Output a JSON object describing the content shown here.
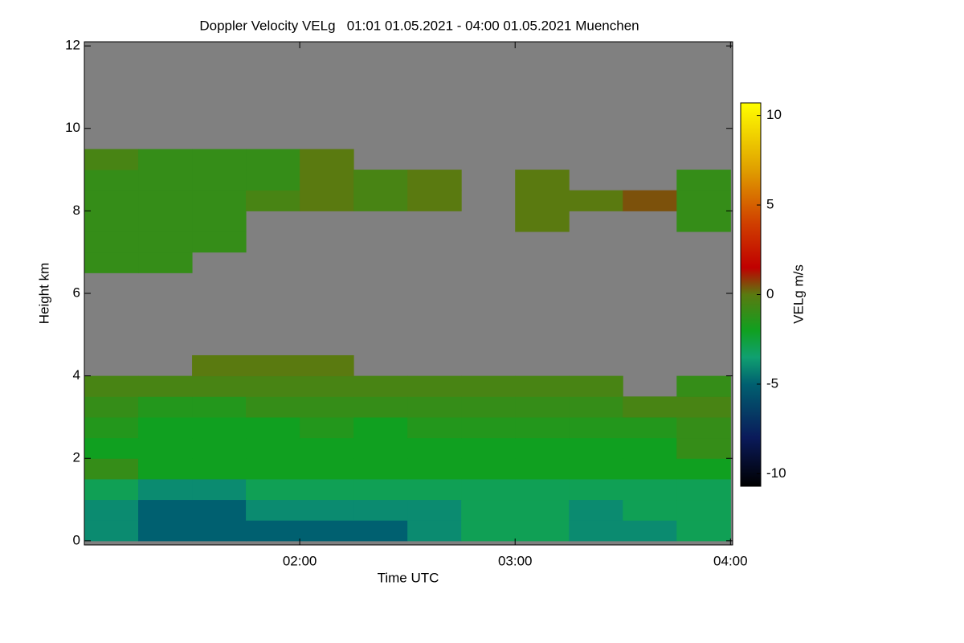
{
  "chart_data": {
    "type": "heatmap",
    "title": "Doppler Velocity VELg   01:01 01.05.2021 - 04:00 01.05.2021 Muenchen",
    "x_label": "Time UTC",
    "y_label": "Height km",
    "colorbar_label": "VELg m/s",
    "background_color": "#808080",
    "xlim": [
      1.0,
      4.01
    ],
    "xticks": [
      {
        "value": 2,
        "label": "02:00"
      },
      {
        "value": 3,
        "label": "03:00"
      },
      {
        "value": 4,
        "label": "04:00"
      }
    ],
    "ylim": [
      -0.1,
      12.1
    ],
    "yticks": [
      0,
      2,
      4,
      6,
      8,
      10,
      12
    ],
    "clim": [
      -10.7,
      10.7
    ],
    "cticks": [
      -10,
      -5,
      0,
      5,
      10
    ],
    "colorscale": [
      [
        -10.7,
        "#000000"
      ],
      [
        -8,
        "#0a1a5a"
      ],
      [
        -5,
        "#006070"
      ],
      [
        -3.5,
        "#10a070"
      ],
      [
        -2,
        "#10a020"
      ],
      [
        0,
        "#5a7a10"
      ],
      [
        1.5,
        "#c00000"
      ],
      [
        4,
        "#d04000"
      ],
      [
        7,
        "#e0a000"
      ],
      [
        10.7,
        "#ffff00"
      ]
    ],
    "x_edges": [
      1.0,
      1.25,
      1.5,
      1.75,
      2.0,
      2.25,
      2.5,
      2.75,
      3.0,
      3.25,
      3.5,
      3.75,
      4.0
    ],
    "y_edges": [
      0,
      0.5,
      1,
      1.5,
      2,
      2.5,
      3,
      3.5,
      4,
      4.5,
      5,
      5.5,
      6,
      6.5,
      7,
      7.5,
      8,
      8.5,
      9,
      9.5,
      10,
      10.5,
      11,
      11.5,
      12
    ],
    "z": [
      [
        -4,
        -5,
        -5,
        -5,
        -5,
        -5,
        -4,
        -3,
        -3,
        -4,
        -4,
        -3
      ],
      [
        -4,
        -5,
        -5,
        -4,
        -4,
        -4,
        -4,
        -3,
        -3,
        -4,
        -3,
        -3
      ],
      [
        -3,
        -4,
        -4,
        -3,
        -3,
        -3,
        -3,
        -3,
        -3,
        -3,
        -3,
        -3
      ],
      [
        -1,
        -2,
        -2,
        -2,
        -2,
        -2,
        -2,
        -2,
        -2,
        -2,
        -2,
        -2
      ],
      [
        -2,
        -2,
        -2,
        -2,
        -2,
        -2,
        -2,
        -2,
        -2,
        -2,
        -2,
        -1
      ],
      [
        -1.5,
        -2,
        -2,
        -2,
        -1.5,
        -2,
        -1.5,
        -1.5,
        -1.5,
        -1.5,
        -1.5,
        -1
      ],
      [
        -1,
        -1.5,
        -1.5,
        -1,
        -1,
        -1,
        -1,
        -1,
        -1,
        -1,
        -0.5,
        -0.5
      ],
      [
        -0.5,
        -0.5,
        -0.5,
        -0.5,
        -0.5,
        -0.5,
        -0.5,
        -0.5,
        -0.5,
        -0.5,
        null,
        -1
      ],
      [
        null,
        null,
        0,
        0,
        0,
        null,
        null,
        null,
        null,
        null,
        null,
        null
      ],
      [
        null,
        null,
        null,
        null,
        null,
        null,
        null,
        null,
        null,
        null,
        null,
        null
      ],
      [
        null,
        null,
        null,
        null,
        null,
        null,
        null,
        null,
        null,
        null,
        null,
        null
      ],
      [
        null,
        null,
        null,
        null,
        null,
        null,
        null,
        null,
        null,
        null,
        null,
        null
      ],
      [
        null,
        null,
        null,
        null,
        null,
        null,
        null,
        null,
        null,
        null,
        null,
        null
      ],
      [
        -1,
        -1,
        null,
        null,
        null,
        null,
        null,
        null,
        null,
        null,
        null,
        null
      ],
      [
        -1,
        -1,
        -1,
        null,
        null,
        null,
        null,
        null,
        null,
        null,
        null,
        null
      ],
      [
        -1,
        -1,
        -1,
        null,
        null,
        null,
        null,
        null,
        0,
        null,
        null,
        -1
      ],
      [
        -1,
        -1,
        -1,
        -0.5,
        0,
        -0.5,
        0,
        null,
        0,
        0,
        0.5,
        -1
      ],
      [
        -1,
        -1,
        -1,
        -1,
        0,
        -0.5,
        0,
        null,
        0,
        null,
        null,
        -1
      ],
      [
        -0.5,
        -1,
        -1,
        -1,
        0,
        null,
        null,
        null,
        null,
        null,
        null,
        null
      ],
      [
        null,
        null,
        null,
        null,
        null,
        null,
        null,
        null,
        null,
        null,
        null,
        null
      ],
      [
        null,
        null,
        null,
        null,
        null,
        null,
        null,
        null,
        null,
        null,
        null,
        null
      ],
      [
        null,
        null,
        null,
        null,
        null,
        null,
        null,
        null,
        null,
        null,
        null,
        null
      ],
      [
        null,
        null,
        null,
        null,
        null,
        null,
        null,
        null,
        null,
        null,
        null,
        null
      ],
      [
        null,
        null,
        null,
        null,
        null,
        null,
        null,
        null,
        null,
        null,
        null,
        null
      ]
    ]
  }
}
